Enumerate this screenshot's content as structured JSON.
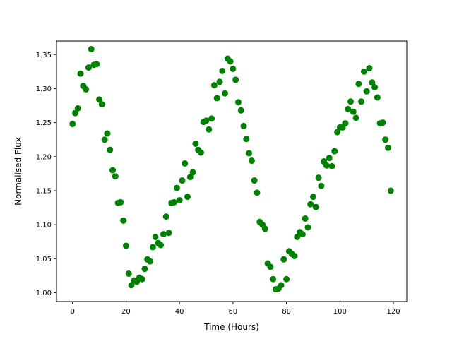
{
  "chart_data": {
    "type": "scatter",
    "title": "",
    "xlabel": "Time (Hours)",
    "ylabel": "Normalised Flux",
    "xlim": [
      -6,
      125
    ],
    "ylim": [
      0.987,
      1.37
    ],
    "xticks": [
      0,
      20,
      40,
      60,
      80,
      100,
      120
    ],
    "yticks": [
      1.0,
      1.05,
      1.1,
      1.15,
      1.2,
      1.25,
      1.3,
      1.35
    ],
    "xtick_labels": [
      "0",
      "20",
      "40",
      "60",
      "80",
      "100",
      "120"
    ],
    "ytick_labels": [
      "1.00",
      "1.05",
      "1.10",
      "1.15",
      "1.20",
      "1.25",
      "1.30",
      "1.35"
    ],
    "grid": false,
    "legend": "none",
    "marker_color": "#008000",
    "series": [
      {
        "x": [
          0,
          1,
          2,
          3,
          4,
          5,
          6,
          7,
          8,
          9,
          10,
          11,
          12,
          13,
          14,
          15,
          16,
          17,
          18,
          19,
          20,
          21,
          22,
          23,
          24,
          25,
          26,
          27,
          28,
          29,
          30,
          31,
          32,
          33,
          34,
          35,
          36,
          37,
          38,
          39,
          40,
          41,
          42,
          43,
          44,
          45,
          46,
          47,
          48,
          49,
          50,
          51,
          52,
          53,
          54,
          55,
          56,
          57,
          58,
          59,
          60,
          61,
          62,
          63,
          64,
          65,
          66,
          67,
          68,
          69,
          70,
          71,
          72,
          73,
          74,
          75,
          76,
          77,
          78,
          79,
          80,
          81,
          82,
          83,
          84,
          85,
          86,
          87,
          88,
          89,
          90,
          91,
          92,
          93,
          94,
          95,
          96,
          97,
          98,
          99,
          100,
          101,
          102,
          103,
          104,
          105,
          106,
          107,
          108,
          109,
          110,
          111,
          112,
          113,
          114,
          115,
          116,
          117,
          118,
          119
        ],
        "y": [
          1.248,
          1.264,
          1.271,
          1.322,
          1.304,
          1.299,
          1.331,
          1.358,
          1.335,
          1.336,
          1.284,
          1.277,
          1.225,
          1.234,
          1.21,
          1.18,
          1.171,
          1.132,
          1.133,
          1.106,
          1.069,
          1.028,
          1.011,
          1.018,
          1.016,
          1.022,
          1.02,
          1.035,
          1.049,
          1.046,
          1.067,
          1.082,
          1.073,
          1.07,
          1.086,
          1.112,
          1.088,
          1.132,
          1.133,
          1.154,
          1.136,
          1.165,
          1.19,
          1.141,
          1.17,
          1.177,
          1.219,
          1.21,
          1.206,
          1.251,
          1.253,
          1.24,
          1.256,
          1.305,
          1.286,
          1.31,
          1.326,
          1.293,
          1.344,
          1.34,
          1.329,
          1.313,
          1.28,
          1.268,
          1.245,
          1.226,
          1.205,
          1.194,
          1.165,
          1.147,
          1.104,
          1.1,
          1.094,
          1.043,
          1.038,
          1.02,
          1.005,
          1.006,
          1.011,
          1.049,
          1.02,
          1.061,
          1.057,
          1.054,
          1.082,
          1.089,
          1.086,
          1.109,
          1.096,
          1.13,
          1.141,
          1.126,
          1.169,
          1.157,
          1.193,
          1.187,
          1.198,
          1.186,
          1.208,
          1.236,
          1.243,
          1.243,
          1.249,
          1.27,
          1.281,
          1.266,
          1.257,
          1.307,
          1.281,
          1.325,
          1.296,
          1.33,
          1.309,
          1.302,
          1.287,
          1.249,
          1.25,
          1.225,
          1.213,
          1.15
        ]
      }
    ]
  }
}
